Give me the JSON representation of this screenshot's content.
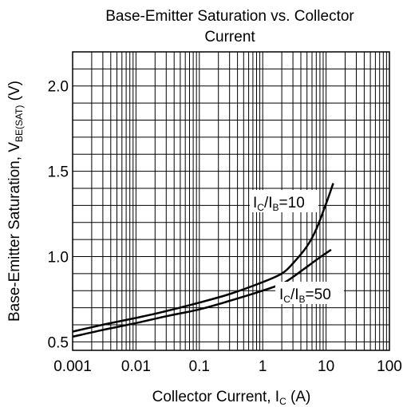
{
  "chart_data": {
    "type": "line",
    "title_line1": "Base-Emitter Saturation vs. Collector",
    "title_line2": "Current",
    "xlabel_main": "Collector Current, I",
    "xlabel_sub": "C",
    "xlabel_unit": " (A)",
    "ylabel_main": "Base-Emitter Saturation, V",
    "ylabel_sub": "BE(SAT)",
    "ylabel_unit": " (V)",
    "x_scale": "log",
    "xlim": [
      0.001,
      100
    ],
    "ylim": [
      0.45,
      2.2
    ],
    "grid": true,
    "x_ticks": [
      {
        "value": 0.001,
        "label": "0.001"
      },
      {
        "value": 0.01,
        "label": "0.01"
      },
      {
        "value": 0.1,
        "label": "0.1"
      },
      {
        "value": 1,
        "label": "1"
      },
      {
        "value": 10,
        "label": "10"
      },
      {
        "value": 100,
        "label": "100"
      }
    ],
    "y_ticks": [
      {
        "value": 0.5,
        "label": "0.5"
      },
      {
        "value": 1.0,
        "label": "1.0"
      },
      {
        "value": 1.5,
        "label": "1.5"
      },
      {
        "value": 2.0,
        "label": "2.0"
      }
    ],
    "y_minor_step": 0.1,
    "series": [
      {
        "label_main": "I",
        "label_sub1": "C",
        "label_mid": "/I",
        "label_sub2": "B",
        "label_tail": "=10",
        "x": [
          0.001,
          0.003,
          0.01,
          0.03,
          0.1,
          0.3,
          1,
          2,
          3,
          5,
          7,
          10,
          13
        ],
        "y": [
          0.56,
          0.6,
          0.64,
          0.68,
          0.73,
          0.78,
          0.85,
          0.9,
          0.96,
          1.06,
          1.16,
          1.31,
          1.43
        ]
      },
      {
        "label_main": "I",
        "label_sub1": "C",
        "label_mid": "/I",
        "label_sub2": "B",
        "label_tail": "=50",
        "x": [
          0.001,
          0.003,
          0.01,
          0.03,
          0.1,
          0.3,
          1,
          2,
          3,
          5,
          7,
          10,
          12
        ],
        "y": [
          0.53,
          0.57,
          0.61,
          0.65,
          0.69,
          0.74,
          0.8,
          0.84,
          0.88,
          0.94,
          0.98,
          1.02,
          1.04
        ]
      }
    ]
  }
}
